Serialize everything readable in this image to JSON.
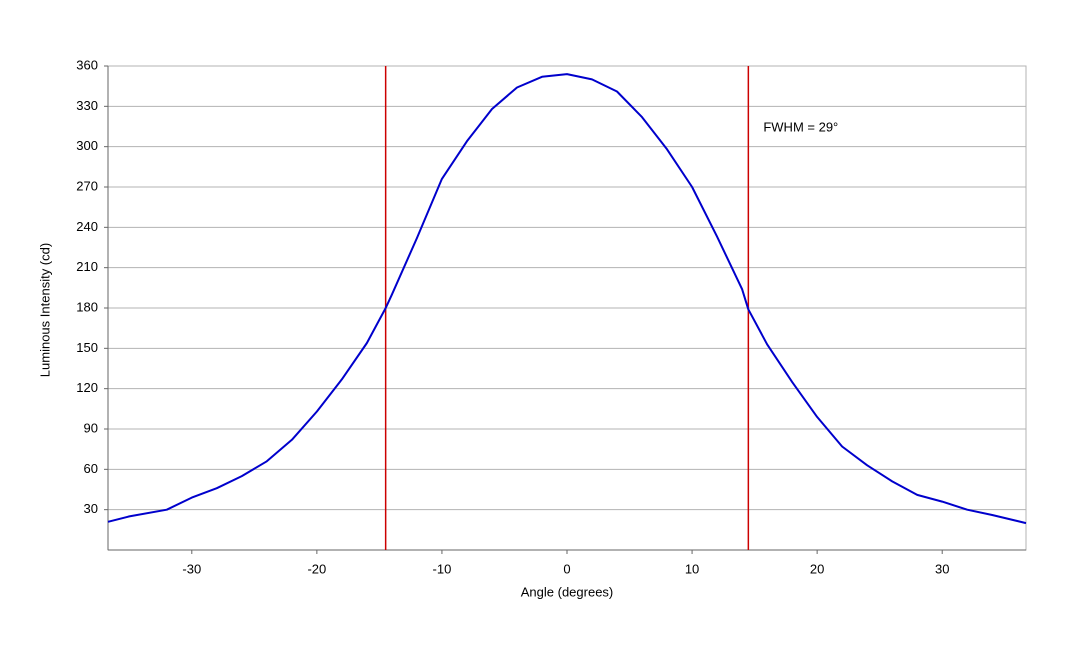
{
  "chart_data": {
    "type": "line",
    "x_label": "Angle (degrees)",
    "y_label": "Luminous Intensity (cd)",
    "annotation": "FWHM = 29°",
    "x": [
      -36.7,
      -35,
      -32,
      -30,
      -28,
      -26,
      -24,
      -22,
      -20,
      -18,
      -16,
      -14.5,
      -14,
      -12,
      -10,
      -8,
      -6,
      -4,
      -2,
      0,
      2,
      4,
      6,
      8,
      10,
      12,
      14,
      14.5,
      16,
      18,
      20,
      22,
      24,
      26,
      28,
      30,
      32,
      34,
      36.7
    ],
    "values": [
      21,
      25,
      30,
      39,
      46,
      55,
      66,
      82,
      103,
      127,
      154,
      180,
      190,
      232,
      276,
      304,
      328,
      344,
      352,
      354,
      350,
      341,
      322,
      298,
      270,
      233,
      194,
      179,
      153,
      125,
      99,
      77,
      63,
      51,
      41,
      36,
      30,
      26,
      20
    ],
    "color": "#0000cc",
    "reference_lines": {
      "x": [
        -14.5,
        14.5
      ],
      "color": "#cc0000"
    },
    "xlim": [
      -36.7,
      36.7
    ],
    "xticks": [
      -30,
      -20,
      -10,
      0,
      10,
      20,
      30
    ],
    "ylim": [
      0,
      360
    ],
    "yticks": [
      30,
      60,
      90,
      120,
      150,
      180,
      210,
      240,
      270,
      300,
      330,
      360
    ],
    "grid": true
  }
}
